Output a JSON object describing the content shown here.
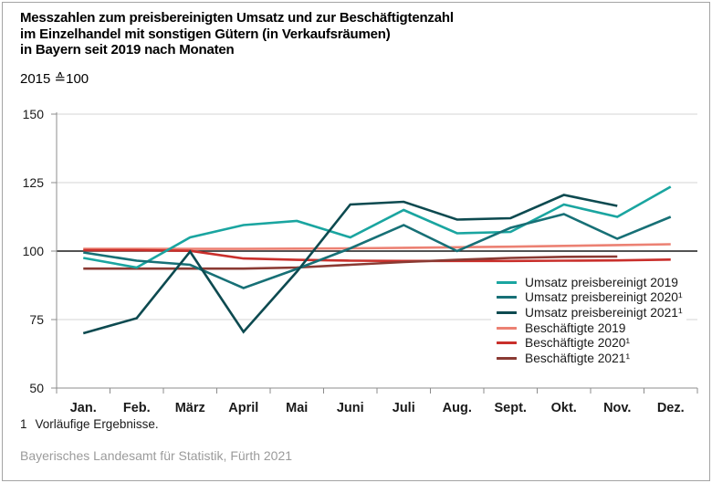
{
  "header": {
    "title_line1": "Messzahlen zum preisbereinigten Umsatz und zur Beschäftigtenzahl",
    "title_line2": "im Einzelhandel mit sonstigen Gütern (in Verkaufsräumen)",
    "title_line3": "in Bayern seit 2019 nach Monaten",
    "index_note": "2015 ≙100"
  },
  "chart_data": {
    "type": "line",
    "title": "Messzahlen zum preisbereinigten Umsatz und zur Beschäftigtenzahl im Einzelhandel mit sonstigen Gütern (in Verkaufsräumen) in Bayern seit 2019 nach Monaten",
    "index_base": "2015 = 100",
    "categories": [
      "Jan.",
      "Feb.",
      "März",
      "April",
      "Mai",
      "Juni",
      "Juli",
      "Aug.",
      "Sept.",
      "Okt.",
      "Nov.",
      "Dez."
    ],
    "y_axis": {
      "min": 50,
      "max": 150,
      "ticks": [
        150,
        125,
        100,
        75,
        50
      ],
      "reference_line": 100
    },
    "grid": "horizontal",
    "legend_position": "inside-right",
    "series": [
      {
        "name": "Umsatz preisbereinigt 2019",
        "color": "#1aa5a0",
        "values": [
          97.5,
          94,
          105,
          109.5,
          111,
          105,
          115,
          106.5,
          107,
          117,
          112.5,
          123.5
        ]
      },
      {
        "name": "Umsatz preisbereinigt 2020¹",
        "color": "#177076",
        "values": [
          99.5,
          96.5,
          95,
          86.5,
          93.5,
          101,
          109.5,
          100,
          108.5,
          113.5,
          104.5,
          112.5
        ]
      },
      {
        "name": "Umsatz preisbereinigt 2021¹",
        "color": "#0d4a50",
        "values": [
          70,
          75.5,
          99.8,
          70.5,
          92.5,
          117,
          118,
          111.5,
          112,
          120.5,
          116.5,
          null
        ]
      },
      {
        "name": "Beschäftigte 2019",
        "color": "#ec8173",
        "values": [
          100.8,
          100.8,
          100.8,
          100.8,
          100.9,
          101,
          101.2,
          101.4,
          101.6,
          101.9,
          102.2,
          102.5
        ]
      },
      {
        "name": "Beschäftigte 2020¹",
        "color": "#c92f2b",
        "values": [
          100.3,
          100.3,
          100.1,
          97.3,
          96.8,
          96.5,
          96.4,
          96.4,
          96.4,
          96.5,
          96.6,
          96.9
        ]
      },
      {
        "name": "Beschäftigte 2021¹",
        "color": "#8a3a33",
        "values": [
          93.6,
          93.6,
          93.6,
          93.6,
          94,
          95,
          96,
          96.8,
          97.5,
          97.9,
          98,
          null
        ]
      }
    ]
  },
  "footnote": {
    "marker": "1",
    "text": "Vorläufige Ergebnisse."
  },
  "source": "Bayerisches Landesamt für Statistik, Fürth 2021"
}
